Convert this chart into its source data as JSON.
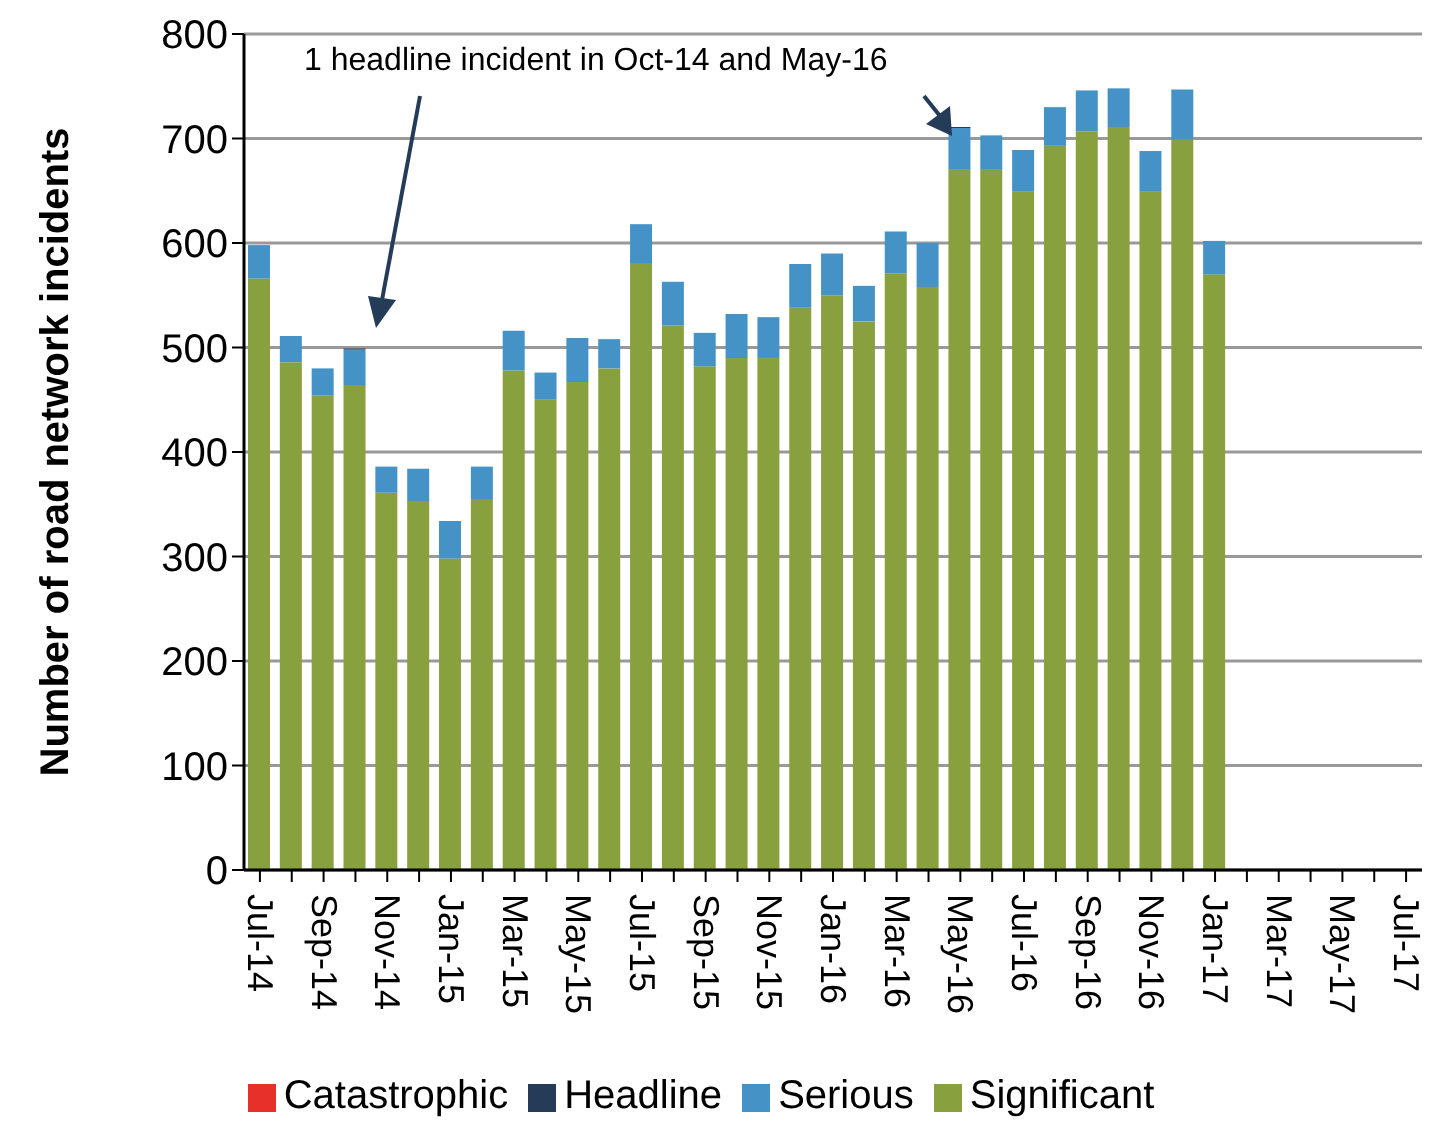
{
  "chart_data": {
    "type": "bar",
    "stacked": true,
    "ylabel": "Number of road network incidents",
    "categories": [
      "Jul-14",
      null,
      "Sep-14",
      null,
      "Nov-14",
      null,
      "Jan-15",
      null,
      "Mar-15",
      null,
      "May-15",
      null,
      "Jul-15",
      null,
      "Sep-15",
      null,
      "Nov-15",
      null,
      "Jan-16",
      null,
      "Mar-16",
      null,
      "May-16",
      null,
      "Jul-16",
      null,
      "Sep-16",
      null,
      "Nov-16",
      null,
      "Jan-17",
      null,
      "Mar-17",
      null,
      "May-17",
      null,
      "Jul-17"
    ],
    "series": [
      {
        "name": "Significant",
        "color": "#88a03e",
        "values": [
          566,
          486,
          454,
          464,
          361,
          353,
          298,
          355,
          478,
          450,
          467,
          480,
          580,
          521,
          482,
          490,
          490,
          538,
          550,
          525,
          571,
          558,
          670,
          670,
          649,
          693,
          707,
          711,
          649,
          699,
          570,
          null,
          null,
          null,
          null,
          null,
          null
        ]
      },
      {
        "name": "Serious",
        "color": "#4592c6",
        "values": [
          32,
          25,
          26,
          34,
          25,
          31,
          36,
          31,
          38,
          26,
          42,
          28,
          38,
          42,
          32,
          42,
          39,
          42,
          40,
          34,
          40,
          42,
          40,
          33,
          40,
          37,
          39,
          37,
          39,
          48,
          32,
          null,
          null,
          null,
          null,
          null,
          null
        ]
      },
      {
        "name": "Headline",
        "color": "#243c58",
        "values": [
          0,
          0,
          0,
          1,
          0,
          0,
          0,
          0,
          0,
          0,
          0,
          0,
          0,
          0,
          0,
          0,
          0,
          0,
          0,
          0,
          0,
          0,
          1,
          0,
          0,
          0,
          0,
          0,
          0,
          0,
          0,
          null,
          null,
          null,
          null,
          null,
          null
        ]
      },
      {
        "name": "Catastrophic",
        "color": "#e8302a",
        "values": [
          0,
          0,
          0,
          0,
          0,
          0,
          0,
          0,
          0,
          0,
          0,
          0,
          0,
          0,
          0,
          0,
          0,
          0,
          0,
          0,
          0,
          0,
          0,
          0,
          0,
          0,
          0,
          0,
          0,
          0,
          0,
          null,
          null,
          null,
          null,
          null,
          null
        ]
      }
    ],
    "ylim": [
      0,
      800
    ],
    "yticks": [
      0,
      100,
      200,
      300,
      400,
      500,
      600,
      700,
      800
    ],
    "grid": "y",
    "legend": "bottom",
    "annotations": [
      "1 headline incident in Oct-14 and May-16"
    ]
  }
}
